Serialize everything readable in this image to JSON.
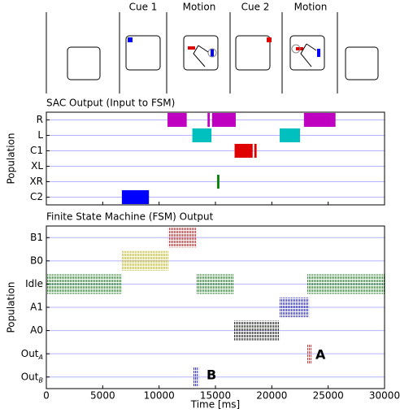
{
  "stimulus_panel": {
    "labels": [
      "Cue 1",
      "Motion",
      "Cue 2",
      "Motion"
    ]
  },
  "chart_data": [
    {
      "type": "timeline",
      "title": "SAC Output (Input to FSM)",
      "ylabel": "Population",
      "xlim": [
        0,
        30000
      ],
      "xticks": [
        0,
        5000,
        10000,
        15000,
        20000,
        25000,
        30000
      ],
      "series": [
        {
          "name": "R",
          "color": "#c000c0",
          "intervals": [
            [
              10750,
              12450
            ],
            [
              14300,
              14500
            ],
            [
              14700,
              16800
            ],
            [
              22850,
              25650
            ]
          ]
        },
        {
          "name": "L",
          "color": "#00bfbf",
          "intervals": [
            [
              12950,
              14650
            ],
            [
              20700,
              22500
            ]
          ]
        },
        {
          "name": "C1",
          "color": "#e00000",
          "intervals": [
            [
              16700,
              18300
            ],
            [
              18450,
              18650
            ]
          ]
        },
        {
          "name": "XL",
          "color": "#00bf00",
          "intervals": []
        },
        {
          "name": "XR",
          "color": "#008000",
          "intervals": [
            [
              15150,
              15350
            ]
          ]
        },
        {
          "name": "C2",
          "color": "#0000ff",
          "intervals": [
            [
              6700,
              9100
            ]
          ]
        }
      ]
    },
    {
      "type": "raster",
      "title": "Finite State Machine (FSM) Output",
      "ylabel": "Population",
      "xlabel": "Time [ms]",
      "xlim": [
        0,
        30000
      ],
      "xticks": [
        0,
        5000,
        10000,
        15000,
        20000,
        25000,
        30000
      ],
      "annotations": [
        "A",
        "B"
      ],
      "series": [
        {
          "name": "B1",
          "color": "#e00000",
          "intervals": [
            [
              10800,
              13300
            ]
          ]
        },
        {
          "name": "B0",
          "color": "#c8b400",
          "intervals": [
            [
              6650,
              10800
            ]
          ]
        },
        {
          "name": "Idle",
          "color": "#008000",
          "intervals": [
            [
              0,
              6700
            ],
            [
              13300,
              16650
            ],
            [
              23150,
              30000
            ]
          ]
        },
        {
          "name": "A1",
          "color": "#0000ff",
          "intervals": [
            [
              20700,
              23300
            ]
          ]
        },
        {
          "name": "A0",
          "color": "#000000",
          "intervals": [
            [
              16600,
              20700
            ]
          ]
        },
        {
          "name": "OutA",
          "color": "#e00000",
          "intervals": [
            [
              23100,
              23500
            ]
          ]
        },
        {
          "name": "OutB",
          "color": "#0000ff",
          "intervals": [
            [
              13050,
              13500
            ]
          ]
        }
      ]
    }
  ]
}
